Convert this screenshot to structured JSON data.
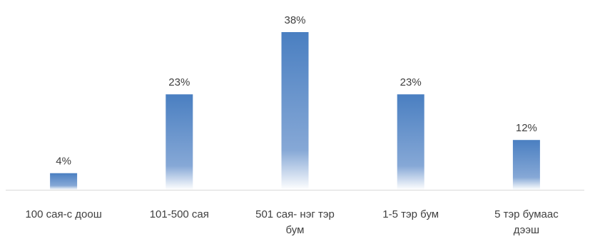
{
  "chart_data": {
    "type": "bar",
    "categories": [
      [
        "100 сая-с доош"
      ],
      [
        "101-500 сая"
      ],
      [
        "501 сая- нэг тэр",
        "бум"
      ],
      [
        "1-5 тэр бум"
      ],
      [
        "5 тэр бумаас",
        "дээш"
      ]
    ],
    "values": [
      4,
      23,
      38,
      23,
      12
    ],
    "value_labels": [
      "4%",
      "23%",
      "38%",
      "23%",
      "12%"
    ],
    "ylim": [
      0,
      38
    ],
    "grid": false,
    "legend": "none",
    "colors": {
      "bar_top": "#4a7fc1",
      "bar_mid": "#86a8d6",
      "bar_bottom": "#ffffff",
      "axis": "#d9d9d9",
      "text": "#404040"
    }
  }
}
